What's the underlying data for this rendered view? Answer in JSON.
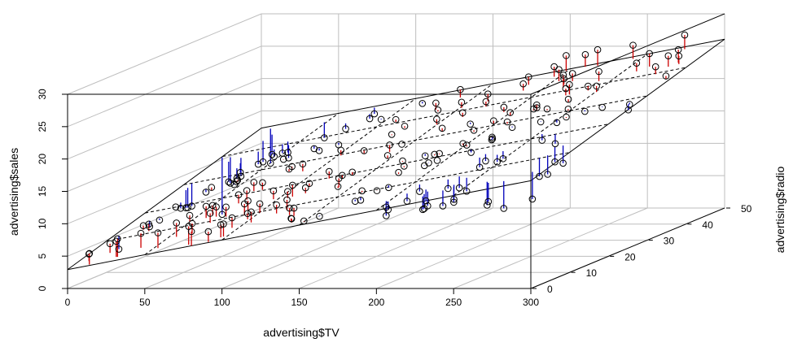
{
  "chart_data": {
    "type": "scatter3d",
    "title": "",
    "xlabel": "advertising$TV",
    "ylabel": "advertising$sales",
    "zlabel": "advertising$radio",
    "xlim": [
      0,
      300
    ],
    "ylim": [
      0,
      30
    ],
    "zlim": [
      0,
      50
    ],
    "x_ticks": [
      "0",
      "50",
      "100",
      "150",
      "200",
      "250",
      "300"
    ],
    "y_ticks": [
      "0",
      "5",
      "10",
      "15",
      "20",
      "25",
      "30"
    ],
    "z_ticks": [
      "0",
      "10",
      "20",
      "30",
      "40",
      "50"
    ],
    "grid": true,
    "plane": {
      "intercept": 2.921,
      "tv_coef": 0.04576,
      "radio_coef": 0.1885
    },
    "residual_colors": {
      "positive": "#cc0000",
      "negative": "#0000bb"
    },
    "points_tv_radio_sales": [
      [
        230.1,
        37.8,
        22.1
      ],
      [
        44.5,
        39.3,
        10.4
      ],
      [
        17.2,
        45.9,
        9.3
      ],
      [
        151.5,
        41.3,
        18.5
      ],
      [
        180.8,
        10.8,
        12.9
      ],
      [
        8.7,
        48.9,
        7.2
      ],
      [
        57.5,
        32.8,
        11.8
      ],
      [
        120.2,
        19.6,
        13.2
      ],
      [
        8.6,
        2.1,
        4.8
      ],
      [
        199.8,
        2.6,
        10.6
      ],
      [
        66.1,
        5.8,
        8.6
      ],
      [
        214.7,
        24,
        17.4
      ],
      [
        23.8,
        35.1,
        9.2
      ],
      [
        97.5,
        7.6,
        9.7
      ],
      [
        204.1,
        32.9,
        19
      ],
      [
        195.4,
        47.7,
        22.4
      ],
      [
        67.8,
        36.6,
        12.5
      ],
      [
        281.4,
        39.6,
        24.4
      ],
      [
        69.2,
        20.5,
        11.3
      ],
      [
        147.3,
        23.9,
        14.6
      ],
      [
        218.4,
        27.7,
        18
      ],
      [
        237.4,
        5.1,
        12.5
      ],
      [
        13.2,
        15.9,
        5.6
      ],
      [
        228.3,
        16.9,
        15.5
      ],
      [
        62.3,
        12.6,
        9.7
      ],
      [
        262.9,
        3.5,
        12
      ],
      [
        142.9,
        29.3,
        15
      ],
      [
        240.1,
        16.7,
        15.9
      ],
      [
        248.8,
        27.1,
        18.9
      ],
      [
        70.6,
        16,
        10.5
      ],
      [
        292.9,
        28.3,
        21.4
      ],
      [
        112.9,
        17.4,
        11.9
      ],
      [
        97.2,
        1.5,
        9.6
      ],
      [
        265.6,
        20,
        17.4
      ],
      [
        95.7,
        1.4,
        9.5
      ],
      [
        290.7,
        4.1,
        12.8
      ],
      [
        266.9,
        43.8,
        25.4
      ],
      [
        74.7,
        49.4,
        14.7
      ],
      [
        43.1,
        26.7,
        10.1
      ],
      [
        228,
        37.7,
        21.5
      ],
      [
        202.5,
        22.3,
        16.6
      ],
      [
        177,
        33.4,
        17.1
      ],
      [
        293.6,
        27.7,
        20.7
      ],
      [
        206.9,
        8.4,
        12.9
      ],
      [
        25.1,
        25.7,
        8.5
      ],
      [
        175.1,
        22.5,
        14.9
      ],
      [
        89.7,
        9.9,
        10.6
      ],
      [
        239.9,
        41.5,
        23.2
      ],
      [
        227.2,
        15.8,
        14.8
      ],
      [
        66.9,
        11.7,
        9.7
      ],
      [
        199.8,
        3.1,
        11.4
      ],
      [
        100.4,
        9.6,
        10.7
      ],
      [
        216.4,
        41.7,
        22.6
      ],
      [
        182.6,
        46.2,
        21.2
      ],
      [
        262.7,
        28.8,
        20.2
      ],
      [
        198.9,
        49.4,
        23.7
      ],
      [
        7.3,
        28.1,
        5.5
      ],
      [
        136.2,
        19.2,
        13.2
      ],
      [
        210.8,
        49.6,
        23.8
      ],
      [
        210.7,
        29.5,
        18.4
      ],
      [
        53.5,
        2,
        8.1
      ],
      [
        261.3,
        42.7,
        24.2
      ],
      [
        239.3,
        15.5,
        15.7
      ],
      [
        102.7,
        29.6,
        14
      ],
      [
        131.1,
        42.8,
        18
      ],
      [
        69,
        9.3,
        9.3
      ],
      [
        31.5,
        24.6,
        9.5
      ],
      [
        139.3,
        14.5,
        13.4
      ],
      [
        237.4,
        27.5,
        18.9
      ],
      [
        216.8,
        43.9,
        22.3
      ],
      [
        199.1,
        30.6,
        18.3
      ],
      [
        109.8,
        14.3,
        12.4
      ],
      [
        26.8,
        33,
        8.8
      ],
      [
        129.4,
        5.7,
        11
      ],
      [
        213.4,
        24.6,
        17
      ],
      [
        16.9,
        43.7,
        8.7
      ],
      [
        27.5,
        1.6,
        6.9
      ],
      [
        120.5,
        28.5,
        14.2
      ],
      [
        5.4,
        29.9,
        5.3
      ],
      [
        116,
        7.7,
        11
      ],
      [
        76.4,
        26.7,
        11.8
      ],
      [
        239.8,
        4.1,
        12.3
      ],
      [
        75.3,
        20.3,
        11.3
      ],
      [
        68.4,
        44.5,
        13.6
      ],
      [
        213.5,
        43,
        21.7
      ],
      [
        193.2,
        18.4,
        15.2
      ],
      [
        76.3,
        27.5,
        12
      ],
      [
        110.7,
        40.6,
        16
      ],
      [
        88.3,
        25.5,
        12.9
      ],
      [
        109.8,
        47.8,
        16.7
      ],
      [
        134.3,
        4.9,
        11.2
      ],
      [
        28.6,
        1.5,
        7.3
      ],
      [
        217.7,
        33.5,
        19.4
      ],
      [
        250.9,
        36.5,
        22.2
      ],
      [
        107.4,
        14,
        11.5
      ],
      [
        163.3,
        31.6,
        16.9
      ],
      [
        197.6,
        3.5,
        11.7
      ],
      [
        184.9,
        21,
        15.5
      ],
      [
        289.7,
        42.3,
        25.4
      ],
      [
        135.2,
        41.7,
        17.2
      ],
      [
        222.4,
        4.3,
        11.7
      ],
      [
        296.4,
        36.3,
        23.8
      ],
      [
        280.2,
        10.1,
        14.8
      ],
      [
        187.9,
        17.2,
        14.7
      ],
      [
        238.2,
        34.3,
        20.7
      ],
      [
        137.9,
        46.4,
        19.2
      ],
      [
        25,
        11,
        7.2
      ],
      [
        90.4,
        0.3,
        8.7
      ],
      [
        13.1,
        0.4,
        5.3
      ],
      [
        255.4,
        26.9,
        19.8
      ],
      [
        225.8,
        8.2,
        13.4
      ],
      [
        241.7,
        38,
        21.8
      ],
      [
        175.7,
        15.4,
        14.1
      ],
      [
        209.6,
        20.6,
        15.9
      ],
      [
        78.2,
        46.8,
        14.6
      ],
      [
        75.1,
        35,
        12.6
      ],
      [
        139.2,
        14.3,
        12.2
      ],
      [
        76.4,
        0.8,
        9.4
      ],
      [
        125.7,
        36.9,
        15.9
      ],
      [
        19.4,
        16,
        6.6
      ],
      [
        141.3,
        26.8,
        15.5
      ],
      [
        18.8,
        21.7,
        7
      ],
      [
        224,
        2.4,
        11.6
      ],
      [
        123.1,
        34.6,
        15.2
      ],
      [
        229.5,
        32.3,
        19.7
      ],
      [
        87.2,
        11.8,
        10.6
      ],
      [
        7.8,
        38.9,
        6.6
      ],
      [
        80.2,
        0,
        8.8
      ],
      [
        220.3,
        49,
        24.7
      ],
      [
        59.6,
        12,
        9.7
      ],
      [
        0.7,
        39.6,
        1.6
      ],
      [
        265.2,
        2.9,
        12.7
      ],
      [
        8.4,
        27.2,
        5.7
      ],
      [
        219.8,
        33.5,
        19.6
      ],
      [
        36.9,
        38.6,
        10.8
      ],
      [
        48.3,
        47,
        11.6
      ],
      [
        25.6,
        39,
        9.5
      ],
      [
        273.7,
        28.9,
        20.8
      ],
      [
        43,
        25.9,
        9.6
      ],
      [
        184.9,
        43.9,
        20.7
      ],
      [
        73.4,
        17,
        10.9
      ],
      [
        193.7,
        35.4,
        19.2
      ],
      [
        220.5,
        33.2,
        20.1
      ],
      [
        104.6,
        5.7,
        10.4
      ],
      [
        96.2,
        14.8,
        11.4
      ],
      [
        140.3,
        1.9,
        10.3
      ],
      [
        240.1,
        7.3,
        13.2
      ],
      [
        243.2,
        49,
        25.4
      ],
      [
        38,
        40.3,
        10.9
      ],
      [
        44.7,
        25.8,
        10.1
      ],
      [
        280.7,
        13.9,
        16.1
      ],
      [
        121,
        8.4,
        11.6
      ],
      [
        197.6,
        23.3,
        16.6
      ],
      [
        171.3,
        39.7,
        19
      ],
      [
        187.8,
        21.1,
        15.6
      ],
      [
        4.1,
        11.6,
        3.2
      ],
      [
        93.9,
        43.5,
        15.3
      ],
      [
        149.8,
        1.3,
        10.1
      ],
      [
        11.7,
        36.9,
        7.3
      ],
      [
        131.7,
        18.4,
        12.9
      ],
      [
        172.5,
        18.1,
        14.4
      ],
      [
        85.7,
        35.8,
        13.3
      ],
      [
        188.4,
        18.1,
        14.9
      ],
      [
        163.5,
        36.8,
        18
      ],
      [
        117.2,
        14.7,
        11.9
      ],
      [
        234.5,
        3.4,
        11.9
      ],
      [
        17.9,
        37.6,
        8
      ],
      [
        206.8,
        5.2,
        12.2
      ],
      [
        215.4,
        23.6,
        17.1
      ],
      [
        284.3,
        10.6,
        15
      ],
      [
        50,
        11.6,
        8.4
      ],
      [
        164.5,
        20.9,
        14.5
      ],
      [
        19.6,
        20.1,
        7.6
      ],
      [
        168.4,
        7.1,
        11.7
      ],
      [
        222.4,
        3.4,
        11.5
      ],
      [
        276.9,
        48.9,
        27
      ],
      [
        248.4,
        30.2,
        20.2
      ],
      [
        170.2,
        7.8,
        11.7
      ],
      [
        276.7,
        2.3,
        11.8
      ],
      [
        165.6,
        10,
        12.6
      ],
      [
        156.6,
        2.6,
        10.5
      ],
      [
        218.5,
        5.4,
        12.2
      ],
      [
        56.2,
        5.7,
        8.7
      ],
      [
        287.6,
        43,
        26.2
      ],
      [
        253.8,
        21.3,
        17.6
      ],
      [
        205,
        45.1,
        22.6
      ],
      [
        139.5,
        2.1,
        10.3
      ],
      [
        191.1,
        28.7,
        17.3
      ],
      [
        286,
        13.9,
        15.9
      ],
      [
        18.7,
        12.1,
        6.7
      ],
      [
        39.5,
        41.1,
        10.8
      ],
      [
        75.5,
        10.8,
        9.9
      ],
      [
        17.2,
        4.1,
        5.9
      ],
      [
        166.8,
        42,
        19.6
      ],
      [
        149.7,
        35.6,
        17.3
      ],
      [
        38.2,
        3.7,
        7.6
      ],
      [
        94.2,
        4.9,
        9.7
      ],
      [
        177,
        9.3,
        12.8
      ],
      [
        283.6,
        42,
        25.5
      ],
      [
        232.1,
        8.6,
        13.4
      ]
    ]
  }
}
